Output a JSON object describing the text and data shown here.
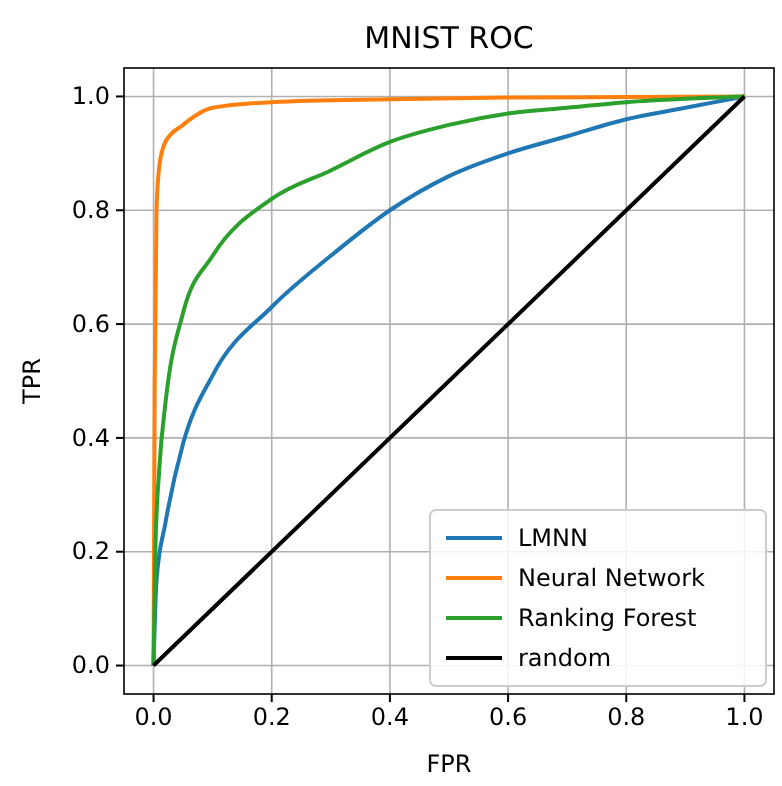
{
  "chart_data": {
    "type": "line",
    "title": "MNIST ROC",
    "xlabel": "FPR",
    "ylabel": "TPR",
    "xlim": [
      -0.05,
      1.05
    ],
    "ylim": [
      -0.05,
      1.05
    ],
    "xticks": [
      {
        "value": 0,
        "label": "0.0"
      },
      {
        "value": 0.2,
        "label": "0.2"
      },
      {
        "value": 0.4,
        "label": "0.4"
      },
      {
        "value": 0.6,
        "label": "0.6"
      },
      {
        "value": 0.8,
        "label": "0.8"
      },
      {
        "value": 1,
        "label": "1.0"
      }
    ],
    "yticks": [
      {
        "value": 0,
        "label": "0.0"
      },
      {
        "value": 0.2,
        "label": "0.2"
      },
      {
        "value": 0.4,
        "label": "0.4"
      },
      {
        "value": 0.6,
        "label": "0.6"
      },
      {
        "value": 0.8,
        "label": "0.8"
      },
      {
        "value": 1,
        "label": "1.0"
      }
    ],
    "grid": true,
    "legend": "bottom right",
    "line_style": "solid",
    "marker": "none",
    "series": [
      {
        "name": "LMNN",
        "color": "#1f77b4",
        "x": [
          0,
          0.005,
          0.02,
          0.05,
          0.1,
          0.2,
          0.3,
          0.4,
          0.5,
          0.6,
          0.7,
          0.8,
          0.9,
          1
        ],
        "values": [
          0,
          0.15,
          0.25,
          0.39,
          0.51,
          0.63,
          0.72,
          0.8,
          0.86,
          0.9,
          0.93,
          0.96,
          0.98,
          1
        ]
      },
      {
        "name": "Neural Network",
        "color": "#ff7f0e",
        "x": [
          0,
          0.002,
          0.005,
          0.01,
          0.02,
          0.05,
          0.1,
          0.2,
          0.4,
          0.6,
          0.8,
          1
        ],
        "values": [
          0,
          0.5,
          0.8,
          0.88,
          0.92,
          0.95,
          0.98,
          0.99,
          0.995,
          0.998,
          0.999,
          1
        ]
      },
      {
        "name": "Ranking Forest",
        "color": "#2ca02c",
        "x": [
          0,
          0.003,
          0.01,
          0.02,
          0.05,
          0.1,
          0.2,
          0.3,
          0.4,
          0.5,
          0.6,
          0.7,
          0.8,
          0.9,
          1
        ],
        "values": [
          0,
          0.2,
          0.35,
          0.46,
          0.62,
          0.72,
          0.82,
          0.87,
          0.92,
          0.95,
          0.97,
          0.98,
          0.99,
          0.996,
          1
        ]
      },
      {
        "name": "random",
        "color": "#000000",
        "x": [
          0,
          1
        ],
        "values": [
          0,
          1
        ]
      }
    ]
  }
}
